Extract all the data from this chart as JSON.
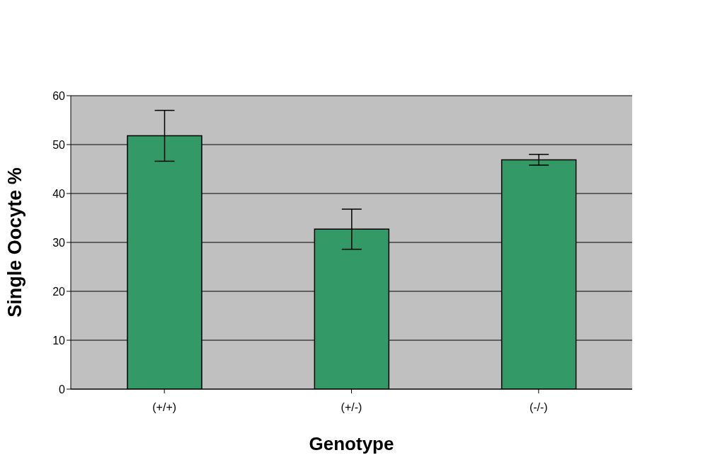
{
  "chart_data": {
    "type": "bar",
    "xlabel": "Genotype",
    "ylabel": "Single Oocyte %",
    "categories": [
      "(+/+)",
      "(+/-)",
      "(-/-)"
    ],
    "values": [
      51.8,
      32.7,
      46.9
    ],
    "errors": [
      5.2,
      4.1,
      1.1
    ],
    "color": "#339966",
    "ylim": [
      0,
      60
    ],
    "yticks": [
      0,
      10,
      20,
      30,
      40,
      50,
      60
    ],
    "grid": "y"
  }
}
